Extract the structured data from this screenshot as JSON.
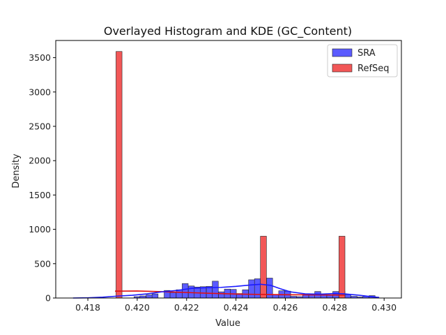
{
  "chart_data": {
    "type": "bar",
    "title": "Overlayed Histogram and KDE (GC_Content)",
    "xlabel": "Value",
    "ylabel": "Density",
    "xlim": [
      0.4167,
      0.4307
    ],
    "ylim": [
      0,
      3750
    ],
    "xticks": [
      "0.418",
      "0.420",
      "0.422",
      "0.424",
      "0.426",
      "0.428",
      "0.430"
    ],
    "yticks": [
      "0",
      "500",
      "1000",
      "1500",
      "2000",
      "2500",
      "3000",
      "3500"
    ],
    "grid": false,
    "legend_position": "top-right",
    "bin_width": 0.000244,
    "colors": {
      "SRA": "#5b5bff",
      "RefSeq": "#f25757",
      "SRA_kde": "#1a1aff",
      "RefSeq_kde": "#e01010"
    },
    "series": [
      {
        "name": "SRA",
        "bins": [
          [
            0.41987,
            20
          ],
          [
            0.42011,
            30
          ],
          [
            0.42036,
            45
          ],
          [
            0.4206,
            60
          ],
          [
            0.42109,
            110
          ],
          [
            0.42133,
            80
          ],
          [
            0.42158,
            120
          ],
          [
            0.42182,
            210
          ],
          [
            0.42207,
            175
          ],
          [
            0.42231,
            160
          ],
          [
            0.42255,
            165
          ],
          [
            0.4228,
            170
          ],
          [
            0.42304,
            245
          ],
          [
            0.42329,
            90
          ],
          [
            0.42353,
            130
          ],
          [
            0.42377,
            125
          ],
          [
            0.42402,
            65
          ],
          [
            0.42426,
            120
          ],
          [
            0.42451,
            265
          ],
          [
            0.42475,
            280
          ],
          [
            0.42499,
            180
          ],
          [
            0.42524,
            290
          ],
          [
            0.42548,
            50
          ],
          [
            0.42573,
            105
          ],
          [
            0.42597,
            100
          ],
          [
            0.42621,
            25
          ],
          [
            0.42646,
            20
          ],
          [
            0.4267,
            50
          ],
          [
            0.42695,
            60
          ],
          [
            0.42719,
            95
          ],
          [
            0.42743,
            60
          ],
          [
            0.42768,
            40
          ],
          [
            0.42792,
            95
          ],
          [
            0.42817,
            95
          ],
          [
            0.42841,
            50
          ],
          [
            0.42866,
            25
          ],
          [
            0.4289,
            15
          ],
          [
            0.42914,
            25
          ],
          [
            0.42939,
            35
          ]
        ],
        "kde": [
          [
            0.4174,
            0
          ],
          [
            0.418,
            3
          ],
          [
            0.4186,
            12
          ],
          [
            0.4192,
            28
          ],
          [
            0.4198,
            40
          ],
          [
            0.4204,
            60
          ],
          [
            0.421,
            90
          ],
          [
            0.4216,
            110
          ],
          [
            0.4222,
            140
          ],
          [
            0.4228,
            150
          ],
          [
            0.4234,
            155
          ],
          [
            0.424,
            170
          ],
          [
            0.4246,
            190
          ],
          [
            0.425,
            200
          ],
          [
            0.4254,
            185
          ],
          [
            0.4258,
            135
          ],
          [
            0.4262,
            90
          ],
          [
            0.4268,
            60
          ],
          [
            0.4274,
            55
          ],
          [
            0.428,
            65
          ],
          [
            0.4284,
            60
          ],
          [
            0.429,
            40
          ],
          [
            0.4296,
            15
          ],
          [
            0.4298,
            8
          ]
        ]
      },
      {
        "name": "RefSeq",
        "bins": [
          [
            0.41914,
            3590
          ],
          [
            0.42499,
            900
          ],
          [
            0.42817,
            900
          ]
        ],
        "kde": [
          [
            0.4191,
            100
          ],
          [
            0.42,
            102
          ],
          [
            0.421,
            92
          ],
          [
            0.422,
            80
          ],
          [
            0.423,
            68
          ],
          [
            0.424,
            58
          ],
          [
            0.425,
            52
          ],
          [
            0.426,
            48
          ],
          [
            0.427,
            46
          ],
          [
            0.428,
            44
          ],
          [
            0.4284,
            42
          ]
        ]
      }
    ]
  }
}
